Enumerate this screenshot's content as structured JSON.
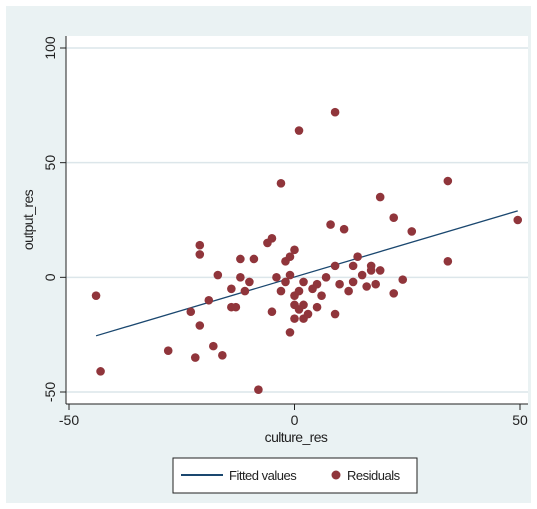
{
  "chart_data": {
    "type": "scatter",
    "xlabel": "culture_res",
    "ylabel": "output_res",
    "xlim": [
      -50,
      50
    ],
    "ylim": [
      -50,
      100
    ],
    "xticks": [
      -50,
      0,
      50
    ],
    "yticks": [
      -50,
      0,
      50,
      100
    ],
    "grid": true,
    "legend_position": "bottom",
    "colors": {
      "plot_background": "#ffffff",
      "figure_background": "#eaf2f3",
      "grid": "#dce6ea",
      "fitted_line": "#1a476f",
      "residual_markers": "#90353b"
    },
    "series": [
      {
        "name": "Fitted values",
        "kind": "line",
        "x": [
          -44,
          49.5
        ],
        "y": [
          -25.5,
          29
        ]
      },
      {
        "name": "Residuals",
        "kind": "scatter",
        "points": [
          [
            -44,
            -8
          ],
          [
            -43,
            -41
          ],
          [
            -28,
            -32
          ],
          [
            -23,
            -15
          ],
          [
            -22,
            -35
          ],
          [
            -21,
            -21
          ],
          [
            -21,
            10
          ],
          [
            -21,
            14
          ],
          [
            -19,
            -10
          ],
          [
            -18,
            -30
          ],
          [
            -17,
            1
          ],
          [
            -16,
            -34
          ],
          [
            -14,
            -13
          ],
          [
            -14,
            -5
          ],
          [
            -13,
            -13
          ],
          [
            -12,
            0
          ],
          [
            -12,
            8
          ],
          [
            -11,
            -6
          ],
          [
            -10,
            -2
          ],
          [
            -9,
            8
          ],
          [
            -8,
            -49
          ],
          [
            -6,
            15
          ],
          [
            -5,
            17
          ],
          [
            -5,
            -15
          ],
          [
            -4,
            0
          ],
          [
            -3,
            -6
          ],
          [
            -3,
            41
          ],
          [
            -2,
            7
          ],
          [
            -2,
            -2
          ],
          [
            -1,
            1
          ],
          [
            -1,
            9
          ],
          [
            -1,
            -24
          ],
          [
            0,
            -8
          ],
          [
            0,
            -12
          ],
          [
            0,
            -18
          ],
          [
            0,
            12
          ],
          [
            1,
            -6
          ],
          [
            1,
            -14
          ],
          [
            1,
            64
          ],
          [
            2,
            -2
          ],
          [
            2,
            -12
          ],
          [
            2,
            -18
          ],
          [
            3,
            -16
          ],
          [
            4,
            -5
          ],
          [
            5,
            -13
          ],
          [
            5,
            -3
          ],
          [
            6,
            -8
          ],
          [
            7,
            0
          ],
          [
            8,
            23
          ],
          [
            9,
            -16
          ],
          [
            9,
            5
          ],
          [
            9,
            72
          ],
          [
            10,
            -3
          ],
          [
            11,
            21
          ],
          [
            12,
            -6
          ],
          [
            13,
            -2
          ],
          [
            13,
            5
          ],
          [
            14,
            9
          ],
          [
            15,
            1
          ],
          [
            16,
            -4
          ],
          [
            17,
            3
          ],
          [
            17,
            5
          ],
          [
            18,
            -3
          ],
          [
            19,
            35
          ],
          [
            19,
            3
          ],
          [
            22,
            -7
          ],
          [
            22,
            26
          ],
          [
            24,
            -1
          ],
          [
            26,
            20
          ],
          [
            34,
            7
          ],
          [
            34,
            42
          ],
          [
            49.5,
            25
          ]
        ]
      }
    ]
  }
}
